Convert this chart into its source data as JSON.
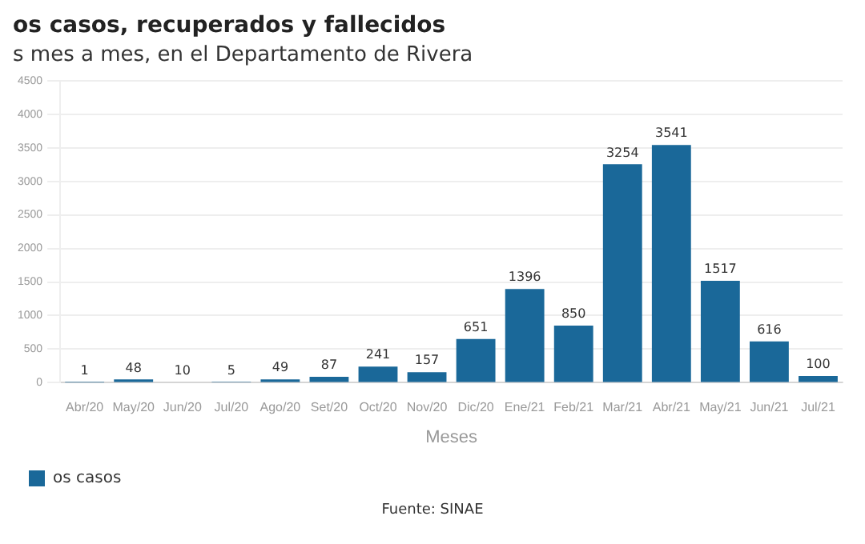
{
  "chart_data": {
    "type": "bar",
    "title": "os casos, recuperados y fallecidos",
    "subtitle": "s mes a mes, en el Departamento de Rivera",
    "xlabel": "Meses",
    "categories": [
      "Abr/20",
      "May/20",
      "Jun/20",
      "Jul/20",
      "Ago/20",
      "Set/20",
      "Oct/20",
      "Nov/20",
      "Dic/20",
      "Ene/21",
      "Feb/21",
      "Mar/21",
      "Abr/21",
      "May/21",
      "Jun/21",
      "Jul/21"
    ],
    "series": [
      {
        "name": "os casos",
        "color": "#1a6899",
        "values": [
          1,
          48,
          10,
          5,
          49,
          87,
          241,
          157,
          651,
          1396,
          850,
          3254,
          3541,
          1517,
          616,
          100
        ]
      }
    ],
    "ylim": [
      0,
      4500
    ],
    "yticks": [
      0,
      500,
      1000,
      1500,
      2000,
      2500,
      3000,
      3500,
      4000,
      4500
    ],
    "grid": "y",
    "legend": "bottom",
    "data_labels": true,
    "annotations": [
      "Fuente: SINAE"
    ]
  }
}
